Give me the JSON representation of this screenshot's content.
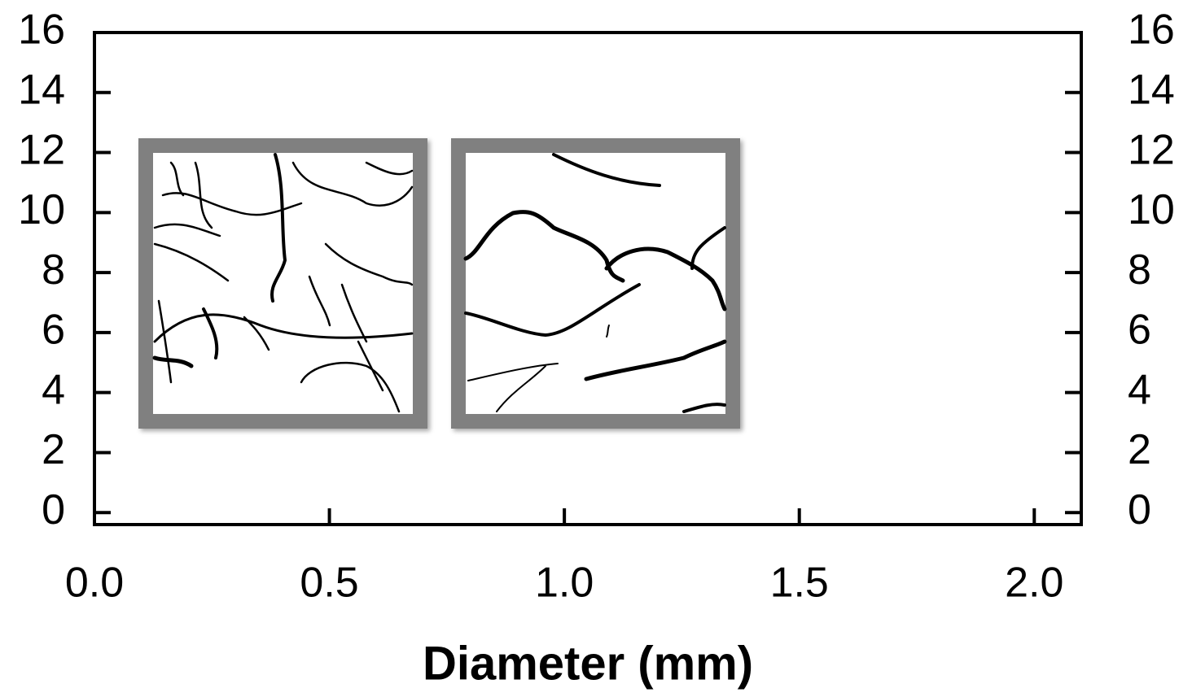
{
  "chart_data": {
    "type": "scatter",
    "x_label": "Diameter (mm)",
    "xlim": [
      0,
      2.1
    ],
    "xticks": [
      {
        "value": 0,
        "label": "0.0"
      },
      {
        "value": 0.5,
        "label": "0.5"
      },
      {
        "value": 1,
        "label": "1.0"
      },
      {
        "value": 1.5,
        "label": "1.5"
      },
      {
        "value": 2,
        "label": "2.0"
      }
    ],
    "ylim": [
      -0.4,
      16
    ],
    "yticks": [
      0,
      2,
      4,
      6,
      8,
      10,
      12,
      14,
      16
    ],
    "y2lim": [
      -0.4,
      16
    ],
    "y2ticks": [
      0,
      2,
      4,
      6,
      8,
      10,
      12,
      14,
      16
    ]
  }
}
